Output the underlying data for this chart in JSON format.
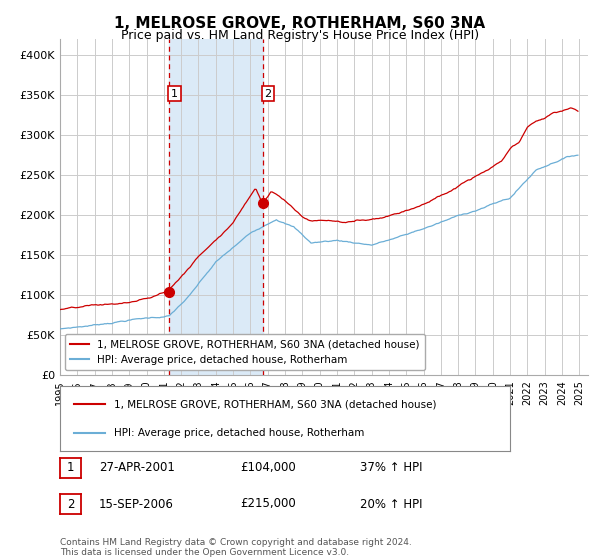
{
  "title": "1, MELROSE GROVE, ROTHERHAM, S60 3NA",
  "subtitle": "Price paid vs. HM Land Registry's House Price Index (HPI)",
  "ylabel_ticks": [
    "£0",
    "£50K",
    "£100K",
    "£150K",
    "£200K",
    "£250K",
    "£300K",
    "£350K",
    "£400K"
  ],
  "ylim": [
    0,
    420000
  ],
  "xlim_start": 1995.0,
  "xlim_end": 2025.5,
  "sale1_date": 2001.32,
  "sale1_price": 104000,
  "sale1_label": "1",
  "sale1_text": "27-APR-2001",
  "sale1_amount": "£104,000",
  "sale1_hpi": "37% ↑ HPI",
  "sale2_date": 2006.71,
  "sale2_price": 215000,
  "sale2_label": "2",
  "sale2_text": "15-SEP-2006",
  "sale2_amount": "£215,000",
  "sale2_hpi": "20% ↑ HPI",
  "hpi_line_color": "#6baed6",
  "property_line_color": "#cc0000",
  "shade_color": "#dbeaf7",
  "vline_color": "#cc0000",
  "legend_property": "1, MELROSE GROVE, ROTHERHAM, S60 3NA (detached house)",
  "legend_hpi": "HPI: Average price, detached house, Rotherham",
  "footer": "Contains HM Land Registry data © Crown copyright and database right 2024.\nThis data is licensed under the Open Government Licence v3.0.",
  "background_color": "#ffffff",
  "grid_color": "#cccccc",
  "title_fontsize": 11,
  "subtitle_fontsize": 9,
  "tick_fontsize": 8
}
